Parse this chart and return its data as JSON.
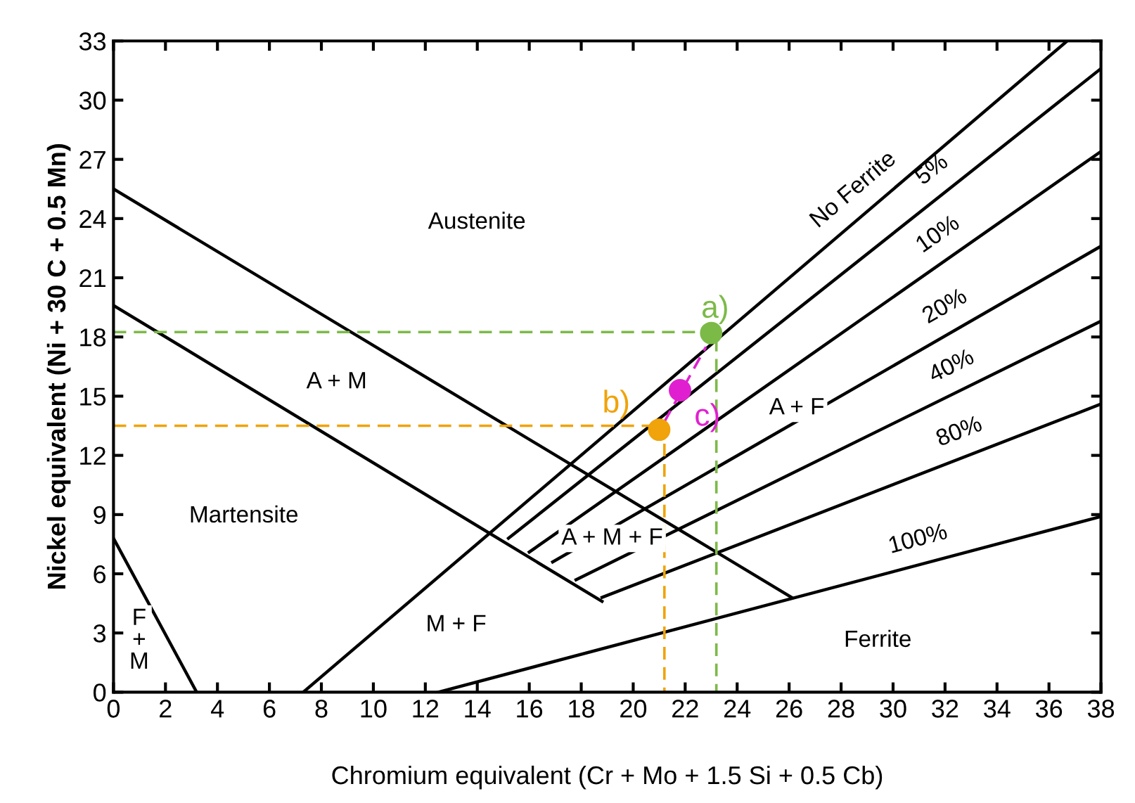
{
  "chart_data": {
    "type": "line",
    "xlabel": "Chromium equivalent (Cr + Mo + 1.5 Si + 0.5 Cb)",
    "ylabel": "Nickel equivalent (Ni + 30 C + 0.5 Mn)",
    "xlim": [
      0,
      38
    ],
    "xticks": [
      0,
      2,
      4,
      6,
      8,
      10,
      12,
      14,
      16,
      18,
      20,
      22,
      24,
      26,
      28,
      30,
      32,
      34,
      36,
      38
    ],
    "ylim": [
      0,
      33
    ],
    "yticks": [
      0,
      3,
      6,
      9,
      12,
      15,
      18,
      21,
      24,
      27,
      30,
      33
    ],
    "grid": false,
    "legend": false,
    "marker": "none",
    "line_style": "solid",
    "series": [
      {
        "color": "#000000",
        "x": [
          0,
          26.1
        ],
        "values": [
          25.5,
          4.8
        ]
      },
      {
        "color": "#000000",
        "x": [
          0,
          18.8
        ],
        "values": [
          19.6,
          4.6
        ]
      },
      {
        "color": "#000000",
        "x": [
          0,
          3.2
        ],
        "values": [
          7.8,
          0
        ]
      },
      {
        "name": "No Ferrite",
        "color": "#000000",
        "x": [
          7.3,
          36.7
        ],
        "values": [
          0,
          33
        ]
      },
      {
        "name": "5%",
        "color": "#000000",
        "x": [
          15.2,
          38
        ],
        "values": [
          7.8,
          31.6
        ]
      },
      {
        "name": "10%",
        "color": "#000000",
        "x": [
          16.0,
          38
        ],
        "values": [
          7.1,
          27.4
        ]
      },
      {
        "name": "20%",
        "color": "#000000",
        "x": [
          16.9,
          38
        ],
        "values": [
          6.6,
          22.6
        ]
      },
      {
        "name": "40%",
        "color": "#000000",
        "x": [
          17.8,
          38
        ],
        "values": [
          5.7,
          18.8
        ]
      },
      {
        "name": "80%",
        "color": "#000000",
        "x": [
          18.8,
          38
        ],
        "values": [
          4.8,
          14.6
        ]
      },
      {
        "name": "100%",
        "color": "#000000",
        "x": [
          12.5,
          38
        ],
        "values": [
          0,
          8.9
        ]
      },
      {
        "color": "#7cba48",
        "line_style": "dashed",
        "x": [
          0,
          23.2,
          23.2
        ],
        "values": [
          18.25,
          18.25,
          0
        ]
      },
      {
        "color": "#f0a30a",
        "line_style": "dashed",
        "x": [
          0,
          21.2,
          21.2
        ],
        "values": [
          13.5,
          13.5,
          0
        ]
      },
      {
        "color": "#e020d0",
        "line_style": "dashed",
        "x": [
          21.2,
          22.8
        ],
        "values": [
          13.7,
          17.5
        ]
      },
      {
        "type": "scatter",
        "name": "a)",
        "color": "#7cba48",
        "marker": "circle",
        "x": [
          23.0
        ],
        "values": [
          18.2
        ]
      },
      {
        "type": "scatter",
        "name": "b)",
        "color": "#f0a30a",
        "marker": "circle",
        "x": [
          21.0
        ],
        "values": [
          13.3
        ]
      },
      {
        "type": "scatter",
        "name": "c)",
        "color": "#e020d0",
        "marker": "circle",
        "x": [
          21.8
        ],
        "values": [
          15.3
        ]
      }
    ],
    "annotations": [
      "Austenite",
      "A + M",
      "Martensite",
      "F\n+\nM",
      "M + F",
      "A + M + F",
      "A + F",
      "Ferrite"
    ]
  }
}
